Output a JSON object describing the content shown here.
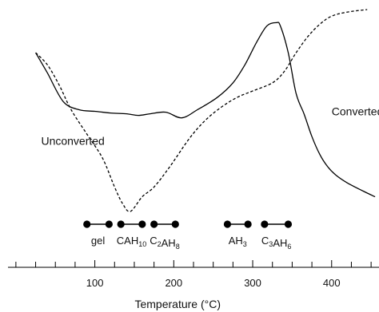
{
  "chart_data": {
    "type": "line",
    "xlabel": "Temperature (°C)",
    "xlim": [
      -10,
      460
    ],
    "x_ticks": [
      100,
      200,
      300,
      400
    ],
    "x_tick_labels": [
      "100",
      "200",
      "300",
      "400"
    ],
    "series": [
      {
        "name": "Converted",
        "style": "solid",
        "points": [
          [
            25,
            195
          ],
          [
            40,
            170
          ],
          [
            60,
            135
          ],
          [
            80,
            125
          ],
          [
            100,
            123
          ],
          [
            120,
            121
          ],
          [
            140,
            120
          ],
          [
            155,
            118
          ],
          [
            170,
            120
          ],
          [
            190,
            122
          ],
          [
            210,
            115
          ],
          [
            230,
            125
          ],
          [
            255,
            140
          ],
          [
            275,
            158
          ],
          [
            290,
            180
          ],
          [
            305,
            208
          ],
          [
            318,
            228
          ],
          [
            330,
            232
          ],
          [
            335,
            228
          ],
          [
            345,
            195
          ],
          [
            355,
            145
          ],
          [
            365,
            120
          ],
          [
            375,
            92
          ],
          [
            385,
            70
          ],
          [
            395,
            55
          ],
          [
            405,
            45
          ],
          [
            420,
            35
          ],
          [
            440,
            25
          ],
          [
            455,
            18
          ]
        ]
      },
      {
        "name": "Unconverted",
        "style": "dashed",
        "points": [
          [
            25,
            195
          ],
          [
            40,
            180
          ],
          [
            55,
            155
          ],
          [
            70,
            125
          ],
          [
            90,
            95
          ],
          [
            110,
            65
          ],
          [
            125,
            30
          ],
          [
            135,
            10
          ],
          [
            145,
            0
          ],
          [
            160,
            18
          ],
          [
            175,
            30
          ],
          [
            195,
            55
          ],
          [
            220,
            90
          ],
          [
            240,
            112
          ],
          [
            260,
            128
          ],
          [
            280,
            140
          ],
          [
            300,
            148
          ],
          [
            325,
            158
          ],
          [
            340,
            172
          ],
          [
            355,
            195
          ],
          [
            370,
            215
          ],
          [
            385,
            230
          ],
          [
            400,
            240
          ],
          [
            420,
            245
          ],
          [
            445,
            248
          ]
        ]
      }
    ],
    "annotations": [
      {
        "text": "Converted",
        "x": 400,
        "y": 118
      },
      {
        "text": "Unconverted",
        "x": 32,
        "y": 82
      }
    ],
    "phase_ranges": [
      {
        "main": "gel",
        "sub": "",
        "tail": "",
        "range": [
          90,
          118
        ]
      },
      {
        "main": "CAH",
        "sub": "10",
        "tail": "",
        "range": [
          133,
          160
        ]
      },
      {
        "main": "C",
        "sub": "2",
        "tail": "AH",
        "sub2": "8",
        "range": [
          175,
          202
        ]
      },
      {
        "main": "AH",
        "sub": "3",
        "tail": "",
        "range": [
          268,
          294
        ]
      },
      {
        "main": "C",
        "sub": "3",
        "tail": "AH",
        "sub2": "6",
        "range": [
          315,
          345
        ]
      }
    ]
  }
}
